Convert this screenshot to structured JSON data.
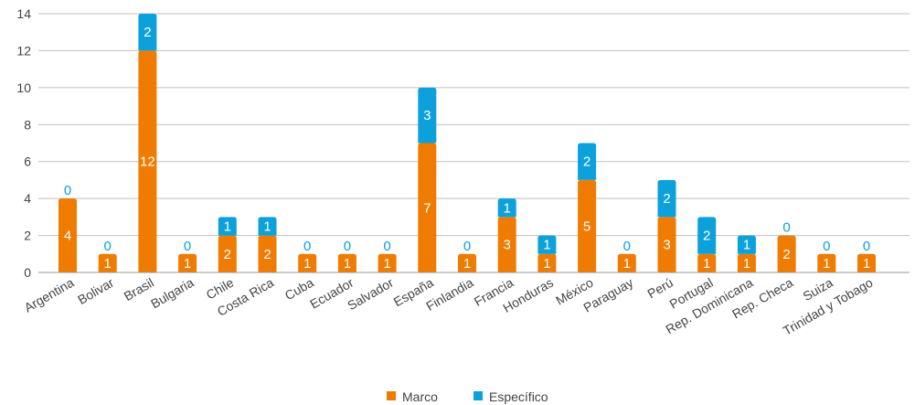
{
  "chart_data": {
    "type": "bar",
    "stacked": true,
    "categories": [
      "Argentina",
      "Bolivar",
      "Brasil",
      "Bulgaria",
      "Chile",
      "Costa Rica",
      "Cuba",
      "Ecuador",
      "Salvador",
      "España",
      "Finlandia",
      "Francia",
      "Honduras",
      "México",
      "Paraguay",
      "Perú",
      "Portugal",
      "Rep. Dominicana",
      "Rep. Checa",
      "Suiza",
      "Trinidad y Tobago"
    ],
    "series": [
      {
        "name": "Marco",
        "color": "#ef7b00",
        "values": [
          4,
          1,
          12,
          1,
          2,
          2,
          1,
          1,
          1,
          7,
          1,
          3,
          1,
          5,
          1,
          3,
          1,
          1,
          2,
          1,
          1
        ]
      },
      {
        "name": "Específico",
        "color": "#0ca1db",
        "values": [
          0,
          0,
          2,
          0,
          1,
          1,
          0,
          0,
          0,
          3,
          0,
          1,
          1,
          2,
          0,
          2,
          2,
          1,
          0,
          0,
          0
        ]
      }
    ],
    "ylim": [
      0,
      14
    ],
    "yticks": [
      0,
      2,
      4,
      6,
      8,
      10,
      12,
      14
    ],
    "grid": true,
    "legend_position": "bottom"
  }
}
